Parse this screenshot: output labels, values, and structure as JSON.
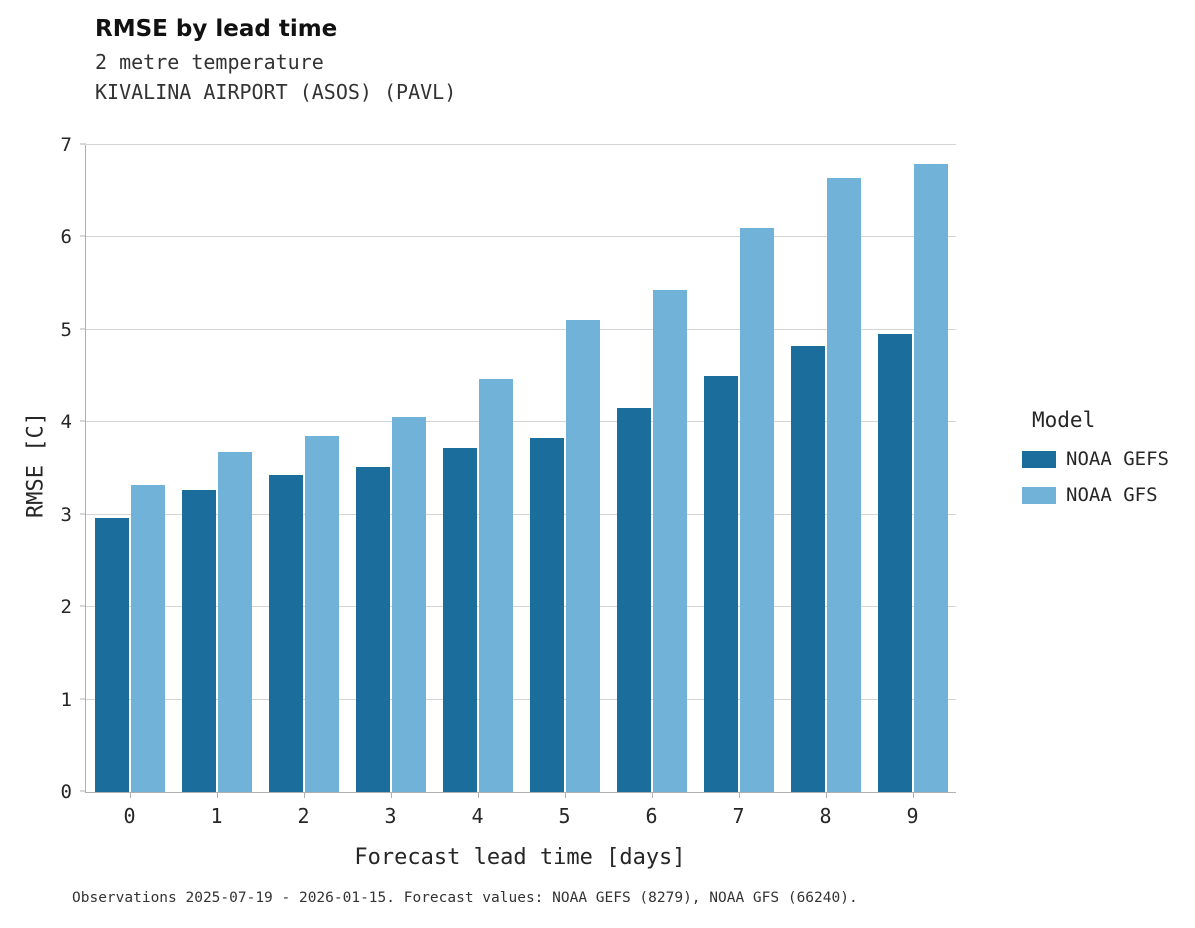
{
  "chart_data": {
    "type": "bar",
    "title": "RMSE by lead time",
    "subtitle1": "2 metre temperature",
    "subtitle2": "KIVALINA AIRPORT (ASOS) (PAVL)",
    "categories": [
      "0",
      "1",
      "2",
      "3",
      "4",
      "5",
      "6",
      "7",
      "8",
      "9"
    ],
    "series": [
      {
        "name": "NOAA GEFS",
        "color": "#1b6e9b",
        "values": [
          2.97,
          3.27,
          3.43,
          3.52,
          3.72,
          3.83,
          4.15,
          4.5,
          4.83,
          4.96
        ]
      },
      {
        "name": "NOAA GFS",
        "color": "#71b3d8",
        "values": [
          3.32,
          3.68,
          3.85,
          4.06,
          4.47,
          5.11,
          5.43,
          6.1,
          6.64,
          6.8
        ]
      }
    ],
    "xlabel": "Forecast lead time [days]",
    "ylabel": "RMSE [C]",
    "ylim": [
      0,
      7
    ],
    "yticks": [
      0,
      1,
      2,
      3,
      4,
      5,
      6,
      7
    ],
    "grid": "horizontal",
    "legend_title": "Model",
    "legend_position": "right",
    "caption": "Observations 2025-07-19 - 2026-01-15. Forecast values: NOAA GEFS (8279), NOAA GFS (66240)."
  }
}
